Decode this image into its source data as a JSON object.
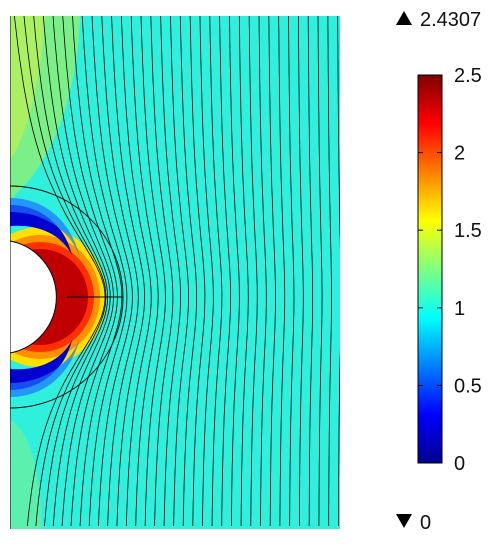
{
  "chart_data": {
    "type": "heatmap",
    "colormap": "jet",
    "max_marker": "2.4307",
    "min_marker": "0",
    "colorbar": {
      "range": [
        0,
        2.5
      ],
      "ticks": [
        "0",
        "0.5",
        "1",
        "1.5",
        "2",
        "2.5"
      ],
      "tick_values": [
        0,
        0.5,
        1,
        1.5,
        2,
        2.5
      ]
    },
    "field": {
      "description_values": {
        "far_field": 1.0,
        "peak_at_hole_edge": 2.4307,
        "min_near_hole_top": 0
      },
      "contour_line_count": 34,
      "has_circular_hole": true,
      "has_outer_circle_arc": true
    }
  },
  "colors": {
    "jet_stops": [
      "#00008f",
      "#0000ff",
      "#00ffff",
      "#ffff00",
      "#ff0000",
      "#800000"
    ],
    "contour": "#000000",
    "marker": "#000000"
  }
}
